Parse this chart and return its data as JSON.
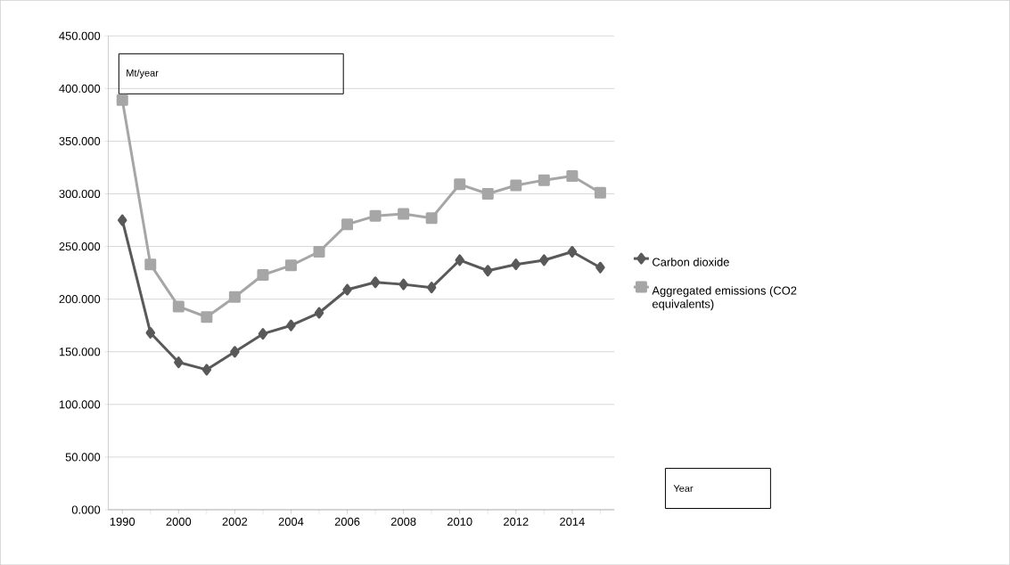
{
  "chart_data": {
    "type": "line",
    "categories": [
      "1990",
      null,
      "2000",
      null,
      "2002",
      null,
      "2004",
      null,
      "2006",
      null,
      "2008",
      null,
      "2010",
      null,
      "2012",
      null,
      "2014",
      null
    ],
    "series": [
      {
        "name": "Carbon dioxide",
        "color": "#595959",
        "marker": "diamond",
        "values": [
          275,
          168,
          140,
          133,
          150,
          167,
          175,
          187,
          209,
          216,
          214,
          211,
          237,
          227,
          233,
          237,
          245,
          230
        ]
      },
      {
        "name": "Aggregated emissions (CO2 equivalents)",
        "color": "#a6a6a6",
        "marker": "square",
        "values": [
          389,
          233,
          193,
          183,
          202,
          223,
          232,
          245,
          271,
          279,
          281,
          277,
          309,
          300,
          308,
          313,
          317,
          301
        ]
      }
    ],
    "ylim": [
      0,
      450
    ],
    "yticks": [
      {
        "value": 0,
        "label": "0.000"
      },
      {
        "value": 50,
        "label": "50.000"
      },
      {
        "value": 100,
        "label": "100.000"
      },
      {
        "value": 150,
        "label": "150.000"
      },
      {
        "value": 200,
        "label": "200.000"
      },
      {
        "value": 250,
        "label": "250.000"
      },
      {
        "value": 300,
        "label": "300.000"
      },
      {
        "value": 350,
        "label": "350.000"
      },
      {
        "value": 400,
        "label": "400.000"
      },
      {
        "value": 450,
        "label": "450.000"
      }
    ],
    "annotations": [
      "Mt/year",
      "Year"
    ],
    "grid": "y",
    "legend": "right",
    "line_style": "solid"
  }
}
